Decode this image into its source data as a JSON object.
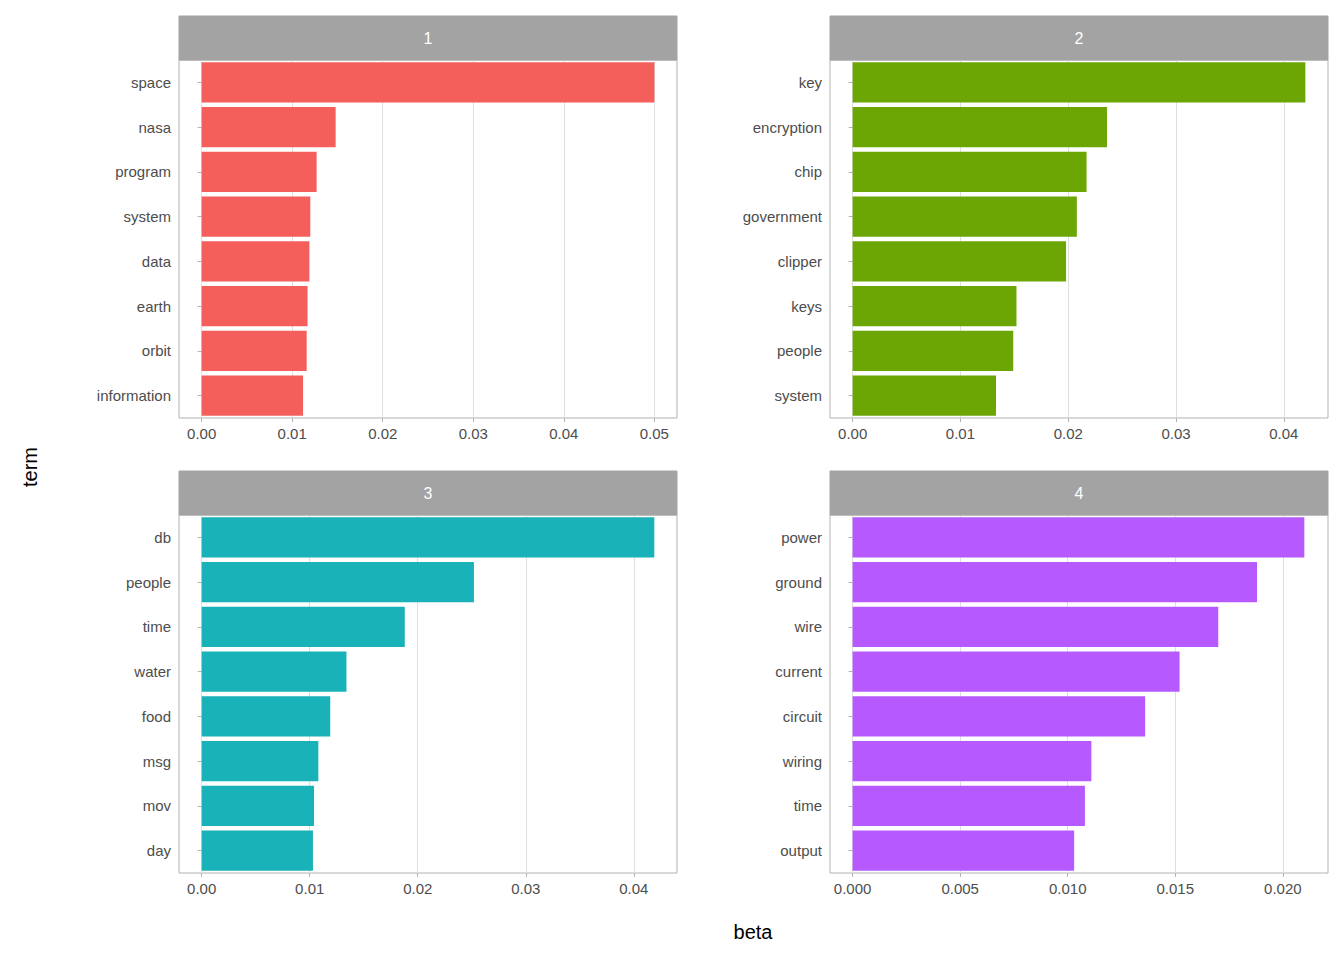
{
  "xlabel": "beta",
  "ylabel": "term",
  "chart_data": [
    {
      "type": "bar",
      "orientation": "horizontal",
      "title": "1",
      "grid": true,
      "color": "#F45F5C",
      "categories": [
        "space",
        "nasa",
        "program",
        "system",
        "data",
        "earth",
        "orbit",
        "information"
      ],
      "values": [
        0.05,
        0.0148,
        0.0127,
        0.012,
        0.0119,
        0.0117,
        0.0116,
        0.0112
      ],
      "xlim": [
        -0.0025,
        0.0525
      ],
      "xticks": [
        {
          "value": 0,
          "label": "0.00"
        },
        {
          "value": 0.01,
          "label": "0.01"
        },
        {
          "value": 0.02,
          "label": "0.02"
        },
        {
          "value": 0.03,
          "label": "0.03"
        },
        {
          "value": 0.04,
          "label": "0.04"
        },
        {
          "value": 0.05,
          "label": "0.05"
        }
      ]
    },
    {
      "type": "bar",
      "orientation": "horizontal",
      "title": "2",
      "grid": true,
      "color": "#6BA604",
      "categories": [
        "key",
        "encryption",
        "chip",
        "government",
        "clipper",
        "keys",
        "people",
        "system"
      ],
      "values": [
        0.042,
        0.0236,
        0.0217,
        0.0208,
        0.0198,
        0.0152,
        0.0149,
        0.0133
      ],
      "xlim": [
        -0.0021,
        0.0441
      ],
      "xticks": [
        {
          "value": 0,
          "label": "0.00"
        },
        {
          "value": 0.01,
          "label": "0.01"
        },
        {
          "value": 0.02,
          "label": "0.02"
        },
        {
          "value": 0.03,
          "label": "0.03"
        },
        {
          "value": 0.04,
          "label": "0.04"
        }
      ]
    },
    {
      "type": "bar",
      "orientation": "horizontal",
      "title": "3",
      "grid": true,
      "color": "#18B2B8",
      "categories": [
        "db",
        "people",
        "time",
        "water",
        "food",
        "msg",
        "mov",
        "day"
      ],
      "values": [
        0.0419,
        0.0252,
        0.0188,
        0.0134,
        0.0119,
        0.0108,
        0.0104,
        0.0103
      ],
      "xlim": [
        -0.0021,
        0.044
      ],
      "xticks": [
        {
          "value": 0,
          "label": "0.00"
        },
        {
          "value": 0.01,
          "label": "0.01"
        },
        {
          "value": 0.02,
          "label": "0.02"
        },
        {
          "value": 0.03,
          "label": "0.03"
        },
        {
          "value": 0.04,
          "label": "0.04"
        }
      ]
    },
    {
      "type": "bar",
      "orientation": "horizontal",
      "title": "4",
      "grid": true,
      "color": "#B65AFF",
      "categories": [
        "power",
        "ground",
        "wire",
        "current",
        "circuit",
        "wiring",
        "time",
        "output"
      ],
      "values": [
        0.021,
        0.0188,
        0.017,
        0.0152,
        0.0136,
        0.0111,
        0.0108,
        0.0103
      ],
      "xlim": [
        -0.00105,
        0.0221
      ],
      "xticks": [
        {
          "value": 0,
          "label": "0.000"
        },
        {
          "value": 0.005,
          "label": "0.005"
        },
        {
          "value": 0.01,
          "label": "0.010"
        },
        {
          "value": 0.015,
          "label": "0.015"
        },
        {
          "value": 0.02,
          "label": "0.020"
        }
      ]
    }
  ]
}
